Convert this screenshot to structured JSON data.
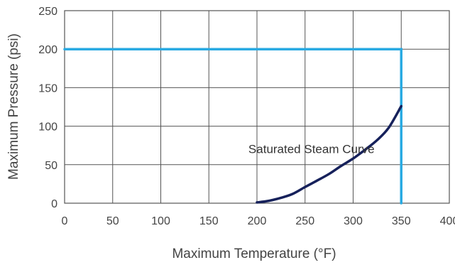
{
  "chart_data": {
    "type": "line",
    "title": "",
    "xlabel": "Maximum Temperature (°F)",
    "ylabel": "Maximum Pressure (psi)",
    "xlim": [
      0,
      400
    ],
    "ylim": [
      0,
      250
    ],
    "x_ticks": [
      0,
      50,
      100,
      150,
      200,
      250,
      300,
      350,
      400
    ],
    "y_ticks": [
      0,
      50,
      100,
      150,
      200,
      250
    ],
    "grid": true,
    "legend": "none",
    "colors": {
      "limit": "#29aae2",
      "curve": "#16215b",
      "grid": "#555555",
      "text": "#444444"
    },
    "series": [
      {
        "x": [
          0,
          350,
          350
        ],
        "y": [
          200,
          200,
          0
        ]
      },
      {
        "x": [
          200,
          212,
          225,
          237,
          250,
          262,
          275,
          287,
          300,
          312,
          325,
          337,
          350
        ],
        "y": [
          1,
          3,
          7,
          12,
          21,
          29,
          38,
          48,
          58,
          69,
          82,
          98,
          126
        ]
      }
    ],
    "annotations": [
      {
        "text": "Saturated Steam Curve",
        "x": 250,
        "y": 66
      }
    ]
  }
}
